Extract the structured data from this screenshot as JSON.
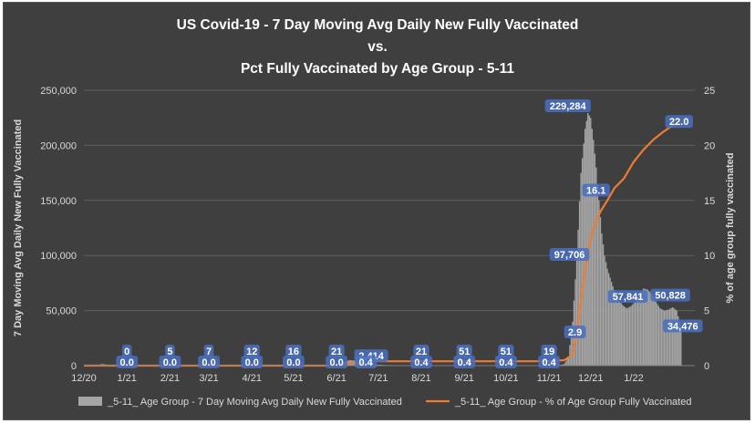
{
  "chart_data": {
    "type": "bar+line",
    "title_lines": [
      "US Covid-19 - 7 Day Moving Avg Daily New Fully Vaccinated",
      "vs.",
      "Pct Fully Vaccinated by Age Group - 5-11"
    ],
    "ylabel_left": "7 Day Moving Avg Daily New Fully Vaccinated",
    "ylabel_right": "% of age group fully vaccinated",
    "ylim_left": [
      0,
      250000
    ],
    "ylim_right": [
      0,
      25
    ],
    "yticks_left": [
      "0",
      "50,000",
      "100,000",
      "150,000",
      "200,000",
      "250,000"
    ],
    "yticks_right": [
      "0",
      "5",
      "10",
      "15",
      "20",
      "25"
    ],
    "x_range": [
      "2020-12-01",
      "2022-02-14"
    ],
    "x_ticks": [
      {
        "date": "2020-12-01",
        "label": "12/20"
      },
      {
        "date": "2021-01-01",
        "label": "1/21"
      },
      {
        "date": "2021-02-01",
        "label": "2/21"
      },
      {
        "date": "2021-03-01",
        "label": "3/21"
      },
      {
        "date": "2021-04-01",
        "label": "4/21"
      },
      {
        "date": "2021-05-01",
        "label": "5/21"
      },
      {
        "date": "2021-06-01",
        "label": "6/21"
      },
      {
        "date": "2021-07-01",
        "label": "7/21"
      },
      {
        "date": "2021-08-01",
        "label": "8/21"
      },
      {
        "date": "2021-09-01",
        "label": "9/21"
      },
      {
        "date": "2021-10-01",
        "label": "10/21"
      },
      {
        "date": "2021-11-01",
        "label": "11/21"
      },
      {
        "date": "2021-12-01",
        "label": "12/21"
      },
      {
        "date": "2022-01-01",
        "label": "1/22"
      }
    ],
    "grid": "horizontal",
    "legend_position": "bottom",
    "series": [
      {
        "name": "_5-11_ Age Group - 7 Day Moving Avg Daily New Fully Vaccinated",
        "kind": "bar",
        "axis": "left",
        "color": "#a6a6a6",
        "points": [
          [
            "2020-12-10",
            0
          ],
          [
            "2020-12-14",
            1500
          ],
          [
            "2020-12-20",
            500
          ],
          [
            "2021-01-01",
            0
          ],
          [
            "2021-02-01",
            5
          ],
          [
            "2021-03-01",
            7
          ],
          [
            "2021-04-01",
            12
          ],
          [
            "2021-05-01",
            16
          ],
          [
            "2021-06-01",
            21
          ],
          [
            "2021-06-05",
            2500
          ],
          [
            "2021-06-10",
            5000
          ],
          [
            "2021-06-16",
            4500
          ],
          [
            "2021-06-22",
            2414
          ],
          [
            "2021-06-30",
            900
          ],
          [
            "2021-07-15",
            100
          ],
          [
            "2021-08-01",
            21
          ],
          [
            "2021-09-01",
            51
          ],
          [
            "2021-10-01",
            51
          ],
          [
            "2021-11-01",
            19
          ],
          [
            "2021-11-08",
            300
          ],
          [
            "2021-11-12",
            1500
          ],
          [
            "2021-11-15",
            8000
          ],
          [
            "2021-11-18",
            40000
          ],
          [
            "2021-11-21",
            97706
          ],
          [
            "2021-11-24",
            175000
          ],
          [
            "2021-11-27",
            215000
          ],
          [
            "2021-11-29",
            229284
          ],
          [
            "2021-12-01",
            225000
          ],
          [
            "2021-12-03",
            205000
          ],
          [
            "2021-12-05",
            180000
          ],
          [
            "2021-12-07",
            150000
          ],
          [
            "2021-12-09",
            120000
          ],
          [
            "2021-12-11",
            100000
          ],
          [
            "2021-12-13",
            88000
          ],
          [
            "2021-12-15",
            80000
          ],
          [
            "2021-12-17",
            72000
          ],
          [
            "2021-12-19",
            65000
          ],
          [
            "2021-12-21",
            60000
          ],
          [
            "2021-12-24",
            55000
          ],
          [
            "2021-12-27",
            52000
          ],
          [
            "2021-12-30",
            54000
          ],
          [
            "2022-01-02",
            57841
          ],
          [
            "2022-01-05",
            65000
          ],
          [
            "2022-01-08",
            70000
          ],
          [
            "2022-01-11",
            69000
          ],
          [
            "2022-01-14",
            65000
          ],
          [
            "2022-01-17",
            58000
          ],
          [
            "2022-01-20",
            52000
          ],
          [
            "2022-01-23",
            50000
          ],
          [
            "2022-01-26",
            50828
          ],
          [
            "2022-01-29",
            53000
          ],
          [
            "2022-02-01",
            50000
          ],
          [
            "2022-02-04",
            34476
          ]
        ]
      },
      {
        "name": "_5-11_ Age Group - % of Age Group Fully Vaccinated",
        "kind": "line",
        "axis": "right",
        "color": "#ed7d31",
        "points": [
          [
            "2020-12-01",
            0.0
          ],
          [
            "2021-01-01",
            0.0
          ],
          [
            "2021-02-01",
            0.0
          ],
          [
            "2021-03-01",
            0.0
          ],
          [
            "2021-04-01",
            0.0
          ],
          [
            "2021-05-01",
            0.0
          ],
          [
            "2021-06-01",
            0.0
          ],
          [
            "2021-06-10",
            0.2
          ],
          [
            "2021-06-22",
            0.4
          ],
          [
            "2021-08-01",
            0.4
          ],
          [
            "2021-09-01",
            0.4
          ],
          [
            "2021-10-01",
            0.4
          ],
          [
            "2021-11-01",
            0.4
          ],
          [
            "2021-11-12",
            0.5
          ],
          [
            "2021-11-18",
            1.0
          ],
          [
            "2021-11-21",
            2.9
          ],
          [
            "2021-11-25",
            7.0
          ],
          [
            "2021-11-29",
            10.5
          ],
          [
            "2021-12-03",
            12.5
          ],
          [
            "2021-12-08",
            14.0
          ],
          [
            "2021-12-13",
            15.0
          ],
          [
            "2021-12-18",
            16.1
          ],
          [
            "2021-12-25",
            17.0
          ],
          [
            "2022-01-01",
            18.5
          ],
          [
            "2022-01-08",
            19.6
          ],
          [
            "2022-01-15",
            20.5
          ],
          [
            "2022-01-22",
            21.2
          ],
          [
            "2022-01-29",
            21.8
          ],
          [
            "2022-02-04",
            22.0
          ]
        ]
      }
    ],
    "data_labels": [
      {
        "series": 0,
        "date": "2021-01-01",
        "value": 0,
        "text": "0"
      },
      {
        "series": 0,
        "date": "2021-02-01",
        "value": 5,
        "text": "5"
      },
      {
        "series": 0,
        "date": "2021-03-01",
        "value": 7,
        "text": "7"
      },
      {
        "series": 0,
        "date": "2021-04-01",
        "value": 12,
        "text": "12"
      },
      {
        "series": 0,
        "date": "2021-05-01",
        "value": 16,
        "text": "16"
      },
      {
        "series": 0,
        "date": "2021-06-01",
        "value": 21,
        "text": "21"
      },
      {
        "series": 0,
        "date": "2021-06-22",
        "value": 2414,
        "text": "2,414"
      },
      {
        "series": 0,
        "date": "2021-08-01",
        "value": 21,
        "text": "21"
      },
      {
        "series": 0,
        "date": "2021-09-01",
        "value": 51,
        "text": "51"
      },
      {
        "series": 0,
        "date": "2021-10-01",
        "value": 51,
        "text": "51"
      },
      {
        "series": 0,
        "date": "2021-11-01",
        "value": 19,
        "text": "19"
      },
      {
        "series": 0,
        "date": "2021-11-29",
        "value": 229284,
        "text": "229,284"
      },
      {
        "series": 0,
        "date": "2021-11-21",
        "value": 97706,
        "text": "97,706"
      },
      {
        "series": 0,
        "date": "2022-01-02",
        "value": 57841,
        "text": "57,841"
      },
      {
        "series": 0,
        "date": "2022-01-26",
        "value": 50828,
        "text": "50,828"
      },
      {
        "series": 0,
        "date": "2022-02-04",
        "value": 34476,
        "text": "34,476"
      },
      {
        "series": 1,
        "date": "2021-01-01",
        "value": 0.0,
        "text": "0.0"
      },
      {
        "series": 1,
        "date": "2021-02-01",
        "value": 0.0,
        "text": "0.0"
      },
      {
        "series": 1,
        "date": "2021-03-01",
        "value": 0.0,
        "text": "0.0"
      },
      {
        "series": 1,
        "date": "2021-04-01",
        "value": 0.0,
        "text": "0.0"
      },
      {
        "series": 1,
        "date": "2021-05-01",
        "value": 0.0,
        "text": "0.0"
      },
      {
        "series": 1,
        "date": "2021-06-01",
        "value": 0.0,
        "text": "0.0"
      },
      {
        "series": 1,
        "date": "2021-06-22",
        "value": 0.4,
        "text": "0.4"
      },
      {
        "series": 1,
        "date": "2021-08-01",
        "value": 0.4,
        "text": "0.4"
      },
      {
        "series": 1,
        "date": "2021-09-01",
        "value": 0.4,
        "text": "0.4"
      },
      {
        "series": 1,
        "date": "2021-10-01",
        "value": 0.4,
        "text": "0.4"
      },
      {
        "series": 1,
        "date": "2021-11-01",
        "value": 0.4,
        "text": "0.4"
      },
      {
        "series": 1,
        "date": "2021-11-21",
        "value": 2.9,
        "text": "2.9"
      },
      {
        "series": 1,
        "date": "2021-12-18",
        "value": 16.1,
        "text": "16.1"
      },
      {
        "series": 1,
        "date": "2022-02-04",
        "value": 22.0,
        "text": "22.0"
      }
    ]
  }
}
